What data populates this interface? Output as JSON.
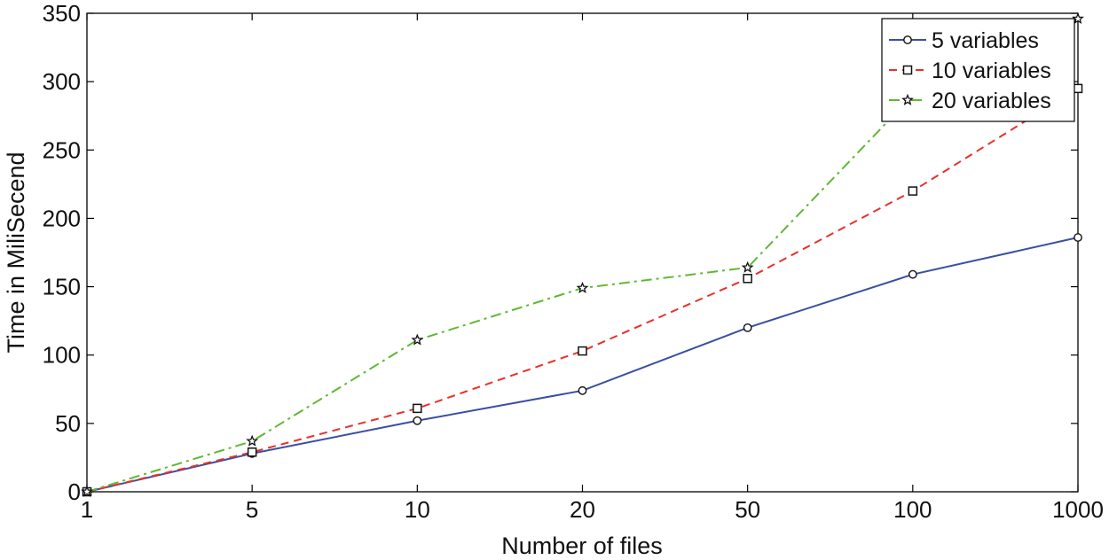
{
  "chart_data": {
    "type": "line",
    "title": "",
    "xlabel": "Number of files",
    "ylabel": "Time in MiliSecend",
    "categories": [
      "1",
      "5",
      "10",
      "20",
      "50",
      "100",
      "1000"
    ],
    "ylim": [
      0,
      350
    ],
    "yticks": [
      "0",
      "50",
      "100",
      "150",
      "200",
      "250",
      "300",
      "350"
    ],
    "grid": false,
    "legend_position": "top-right",
    "series": [
      {
        "name": "5 variables",
        "values": [
          0,
          28,
          52,
          74,
          120,
          159,
          186
        ],
        "color": "#3a4fa0",
        "line_style": "solid",
        "marker": "circle"
      },
      {
        "name": "10 variables",
        "values": [
          0,
          29,
          61,
          103,
          156,
          220,
          295
        ],
        "color": "#e8302a",
        "line_style": "dashed",
        "marker": "square"
      },
      {
        "name": "20 variables",
        "values": [
          0,
          37,
          111,
          149,
          164,
          290,
          346
        ],
        "color": "#5fb832",
        "line_style": "dash-dot",
        "marker": "star"
      }
    ]
  }
}
